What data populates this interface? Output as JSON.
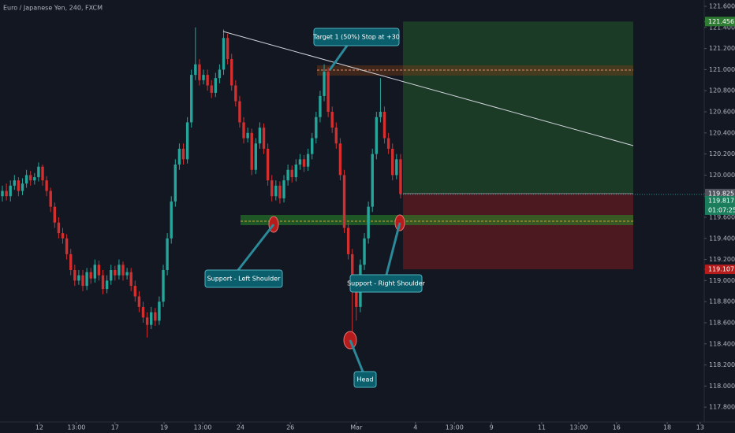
{
  "chart_data": {
    "type": "candlestick",
    "title": "Euro / Japanese Yen, 240, FXCM",
    "up_color": "#26a69a",
    "down_color": "#d32f2f",
    "open": [
      119.8,
      119.85,
      119.8,
      119.9,
      119.95,
      119.85,
      119.92,
      120.0,
      119.95,
      119.98,
      120.08,
      119.95,
      119.85,
      119.7,
      119.55,
      119.45,
      119.4,
      119.25,
      119.1,
      119.0,
      119.05,
      118.95,
      119.08,
      119.02,
      119.15,
      119.05,
      118.92,
      119.0,
      119.1,
      119.05,
      119.15,
      119.05,
      119.08,
      118.95,
      118.85,
      118.75,
      118.65,
      118.58,
      118.7,
      118.62,
      118.8,
      119.1,
      119.4,
      119.75,
      120.1,
      120.25,
      120.15,
      120.5,
      120.95,
      121.05,
      120.9,
      120.95,
      120.85,
      120.78,
      120.92,
      121.0,
      121.3,
      121.1,
      120.85,
      120.7,
      120.5,
      120.35,
      120.4,
      120.05,
      120.3,
      120.45,
      120.25,
      119.95,
      119.8,
      119.9,
      119.78,
      119.95,
      120.05,
      119.98,
      120.1,
      120.15,
      120.08,
      120.2,
      120.35,
      120.55,
      120.75,
      120.98,
      120.6,
      120.45,
      120.3,
      120.0,
      119.5,
      119.25,
      119.0,
      118.75,
      119.15,
      119.4,
      119.7,
      120.2,
      120.55,
      120.6,
      120.35,
      120.25,
      120.0,
      120.15
    ],
    "high": [
      119.9,
      119.92,
      119.95,
      120.0,
      119.98,
      119.97,
      120.05,
      120.04,
      120.02,
      120.12,
      120.1,
      119.99,
      119.88,
      119.74,
      119.6,
      119.5,
      119.44,
      119.3,
      119.15,
      119.1,
      119.1,
      119.12,
      119.12,
      119.2,
      119.19,
      119.1,
      119.05,
      119.15,
      119.14,
      119.2,
      119.18,
      119.12,
      119.12,
      119.0,
      118.9,
      118.8,
      118.7,
      118.75,
      118.74,
      118.85,
      119.15,
      119.45,
      119.8,
      120.15,
      120.3,
      120.3,
      120.55,
      121.0,
      121.4,
      121.1,
      121.0,
      121.0,
      120.9,
      120.97,
      121.05,
      121.38,
      121.34,
      121.15,
      120.9,
      120.75,
      120.55,
      120.45,
      120.44,
      120.35,
      120.5,
      120.49,
      120.3,
      120.0,
      119.95,
      119.94,
      120.0,
      120.1,
      120.09,
      120.15,
      120.2,
      120.19,
      120.25,
      120.4,
      120.6,
      120.8,
      121.05,
      121.02,
      120.65,
      120.5,
      120.35,
      120.05,
      119.55,
      119.3,
      119.05,
      119.2,
      119.45,
      119.75,
      120.25,
      120.6,
      120.92,
      120.65,
      120.4,
      120.3,
      120.2,
      120.2
    ],
    "low": [
      119.75,
      119.76,
      119.75,
      119.86,
      119.8,
      119.81,
      119.88,
      119.9,
      119.91,
      119.94,
      119.9,
      119.8,
      119.65,
      119.5,
      119.4,
      119.35,
      119.2,
      119.05,
      118.95,
      118.96,
      118.9,
      118.91,
      118.97,
      118.98,
      119.0,
      118.87,
      118.88,
      118.96,
      119.0,
      119.01,
      119.0,
      119.01,
      118.9,
      118.8,
      118.7,
      118.6,
      118.46,
      118.54,
      118.57,
      118.58,
      118.75,
      119.05,
      119.35,
      119.7,
      120.05,
      120.1,
      120.11,
      120.45,
      120.9,
      120.85,
      120.86,
      120.8,
      120.73,
      120.74,
      120.87,
      120.95,
      121.05,
      120.8,
      120.65,
      120.45,
      120.3,
      120.31,
      120.0,
      120.01,
      120.25,
      120.2,
      119.9,
      119.75,
      119.76,
      119.73,
      119.74,
      119.9,
      119.93,
      119.94,
      120.05,
      120.03,
      120.04,
      120.15,
      120.3,
      120.5,
      120.7,
      120.55,
      120.4,
      120.25,
      119.95,
      119.45,
      119.2,
      118.42,
      118.62,
      118.7,
      119.1,
      119.35,
      119.65,
      120.15,
      120.5,
      120.3,
      120.2,
      119.95,
      119.96,
      119.78
    ],
    "close": [
      119.85,
      119.8,
      119.9,
      119.95,
      119.85,
      119.92,
      120.0,
      119.95,
      119.98,
      120.08,
      119.95,
      119.85,
      119.7,
      119.55,
      119.45,
      119.4,
      119.25,
      119.1,
      119.0,
      119.05,
      118.95,
      119.08,
      119.02,
      119.15,
      119.05,
      118.92,
      119.0,
      119.1,
      119.05,
      119.15,
      119.05,
      119.08,
      118.95,
      118.85,
      118.75,
      118.65,
      118.58,
      118.7,
      118.62,
      118.8,
      119.1,
      119.4,
      119.75,
      120.1,
      120.25,
      120.15,
      120.5,
      120.95,
      121.05,
      120.9,
      120.95,
      120.85,
      120.78,
      120.92,
      121.0,
      121.3,
      121.1,
      120.85,
      120.7,
      120.5,
      120.35,
      120.4,
      120.05,
      120.3,
      120.45,
      120.25,
      119.95,
      119.8,
      119.9,
      119.78,
      119.95,
      120.05,
      119.98,
      120.1,
      120.15,
      120.08,
      120.2,
      120.35,
      120.55,
      120.75,
      120.98,
      120.6,
      120.45,
      120.3,
      120.0,
      119.5,
      119.25,
      119.0,
      118.75,
      119.15,
      119.4,
      119.7,
      120.2,
      120.55,
      120.6,
      120.35,
      120.25,
      120.0,
      120.15,
      119.82
    ],
    "xlim": [
      -0.59,
      174.5
    ],
    "xticks": [
      {
        "value": 9.2,
        "label": "12"
      },
      {
        "value": 18.4,
        "label": "13:00"
      },
      {
        "value": 28,
        "label": "17"
      },
      {
        "value": 40.2,
        "label": "19"
      },
      {
        "value": 49.8,
        "label": "13:00"
      },
      {
        "value": 59.2,
        "label": "24"
      },
      {
        "value": 71.6,
        "label": "26"
      },
      {
        "value": 88,
        "label": "Mar"
      },
      {
        "value": 102.7,
        "label": "4"
      },
      {
        "value": 112.4,
        "label": "13:00"
      },
      {
        "value": 121.6,
        "label": "9"
      },
      {
        "value": 134.1,
        "label": "11"
      },
      {
        "value": 143.3,
        "label": "13:00"
      },
      {
        "value": 152.7,
        "label": "16"
      },
      {
        "value": 165.3,
        "label": "18"
      },
      {
        "value": 173.5,
        "label": "13"
      }
    ],
    "ylim": [
      117.667,
      121.66
    ],
    "yticks": [
      {
        "value": 117.8,
        "label": "117.800"
      },
      {
        "value": 118.0,
        "label": "118.000"
      },
      {
        "value": 118.2,
        "label": "118.200"
      },
      {
        "value": 118.4,
        "label": "118.400"
      },
      {
        "value": 118.6,
        "label": "118.600"
      },
      {
        "value": 118.8,
        "label": "118.800"
      },
      {
        "value": 119.0,
        "label": "119.000"
      },
      {
        "value": 119.2,
        "label": "119.200"
      },
      {
        "value": 119.4,
        "label": "119.400"
      },
      {
        "value": 119.6,
        "label": "119.600"
      },
      {
        "value": 119.8,
        "label": "119.800"
      },
      {
        "value": 120.0,
        "label": "120.000"
      },
      {
        "value": 120.2,
        "label": "120.200"
      },
      {
        "value": 120.4,
        "label": "120.400"
      },
      {
        "value": 120.6,
        "label": "120.600"
      },
      {
        "value": 120.8,
        "label": "120.800"
      },
      {
        "value": 121.0,
        "label": "121.000"
      },
      {
        "value": 121.2,
        "label": "121.200"
      },
      {
        "value": 121.4,
        "label": "121.400"
      },
      {
        "value": 121.6,
        "label": "121.600"
      }
    ],
    "position": {
      "target": 121.456,
      "entry": 119.825,
      "stop": 119.107,
      "profit_color": "#2e7d32",
      "loss_color": "#b71c1c",
      "entry_color": "#50535e"
    },
    "last_price": 119.817,
    "countdown": "01:07:25",
    "annotations": [
      "Target 1 (50%) Stop at +30",
      "Support - Left Shoulder",
      "Support - Right Shoulder",
      "Head"
    ]
  }
}
